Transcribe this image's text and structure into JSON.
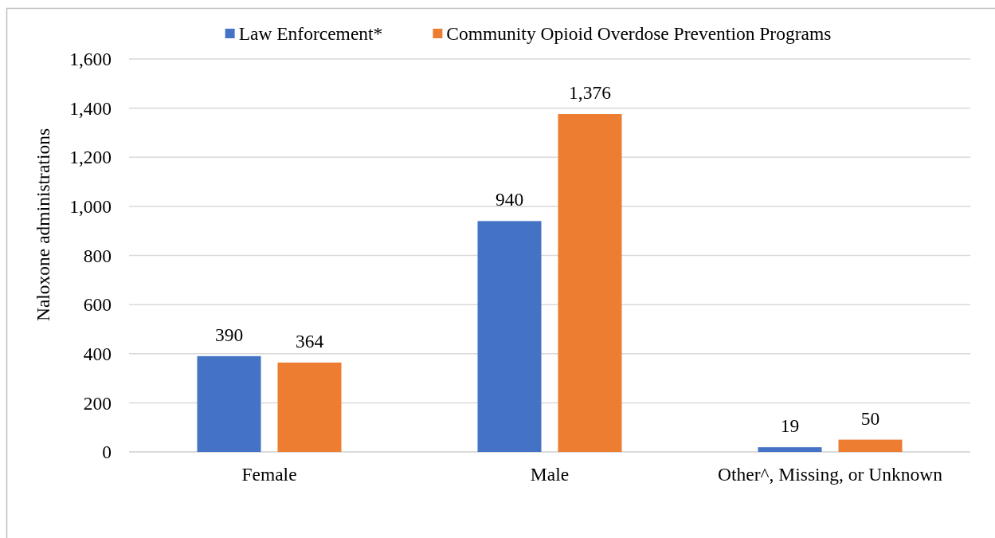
{
  "chart_data": {
    "type": "bar",
    "ylabel": "Naloxone administrations",
    "categories": [
      "Female",
      "Male",
      "Other^, Missing, or Unknown"
    ],
    "series": [
      {
        "name": "Law Enforcement*",
        "color": "#4472c4",
        "values": [
          390,
          940,
          19
        ],
        "value_labels": [
          "390",
          "940",
          "19"
        ]
      },
      {
        "name": "Community Opioid Overdose Prevention Programs",
        "color": "#ed7d31",
        "values": [
          364,
          1376,
          50
        ],
        "value_labels": [
          "364",
          "1,376",
          "50"
        ]
      }
    ],
    "ylim": [
      0,
      1600
    ],
    "yticks": [
      0,
      200,
      400,
      600,
      800,
      {
        "value": 1000,
        "label": "1,000"
      },
      {
        "value": 1200,
        "label": "1,200"
      },
      {
        "value": 1400,
        "label": "1,400"
      },
      {
        "value": 1600,
        "label": "1,600"
      }
    ],
    "grid": "y",
    "legend": "top"
  }
}
